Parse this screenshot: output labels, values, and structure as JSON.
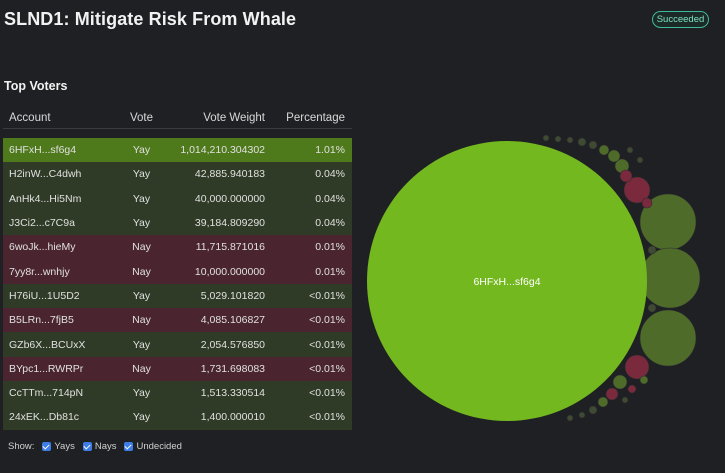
{
  "header": {
    "title": "SLND1: Mitigate Risk From Whale",
    "status": "Succeeded"
  },
  "voters": {
    "title": "Top Voters",
    "columns": {
      "account": "Account",
      "vote": "Vote",
      "weight": "Vote Weight",
      "percentage": "Percentage"
    },
    "rows": [
      {
        "account": "6HFxH...sf6g4",
        "vote": "Yay",
        "weight": "1,014,210.304302",
        "percentage": "1.01%"
      },
      {
        "account": "H2inW...C4dwh",
        "vote": "Yay",
        "weight": "42,885.940183",
        "percentage": "0.04%"
      },
      {
        "account": "AnHk4...Hi5Nm",
        "vote": "Yay",
        "weight": "40,000.000000",
        "percentage": "0.04%"
      },
      {
        "account": "J3Ci2...c7C9a",
        "vote": "Yay",
        "weight": "39,184.809290",
        "percentage": "0.04%"
      },
      {
        "account": "6woJk...hieMy",
        "vote": "Nay",
        "weight": "11,715.871016",
        "percentage": "0.01%"
      },
      {
        "account": "7yy8r...wnhjy",
        "vote": "Nay",
        "weight": "10,000.000000",
        "percentage": "0.01%"
      },
      {
        "account": "H76iU...1U5D2",
        "vote": "Yay",
        "weight": "5,029.101820",
        "percentage": "<0.01%"
      },
      {
        "account": "B5LRn...7fjB5",
        "vote": "Nay",
        "weight": "4,085.106827",
        "percentage": "<0.01%"
      },
      {
        "account": "GZb6X...BCUxX",
        "vote": "Yay",
        "weight": "2,054.576850",
        "percentage": "<0.01%"
      },
      {
        "account": "BYpc1...RWRPr",
        "vote": "Nay",
        "weight": "1,731.698083",
        "percentage": "<0.01%"
      },
      {
        "account": "CcTTm...714pN",
        "vote": "Yay",
        "weight": "1,513.330514",
        "percentage": "<0.01%"
      },
      {
        "account": "24xEK...Db81c",
        "vote": "Yay",
        "weight": "1,400.000010",
        "percentage": "<0.01%"
      }
    ]
  },
  "filters": {
    "label": "Show:",
    "yays": "Yays",
    "nays": "Nays",
    "undecided": "Undecided"
  },
  "bubble_chart": {
    "main_label": "6HFxH...sf6g4"
  },
  "colors": {
    "yay": "#73b81e",
    "nay": "#a8264b",
    "yay_dim": "#4f6b2a",
    "nay_dim": "#7a2a3c",
    "accent": "#3fb99a"
  }
}
